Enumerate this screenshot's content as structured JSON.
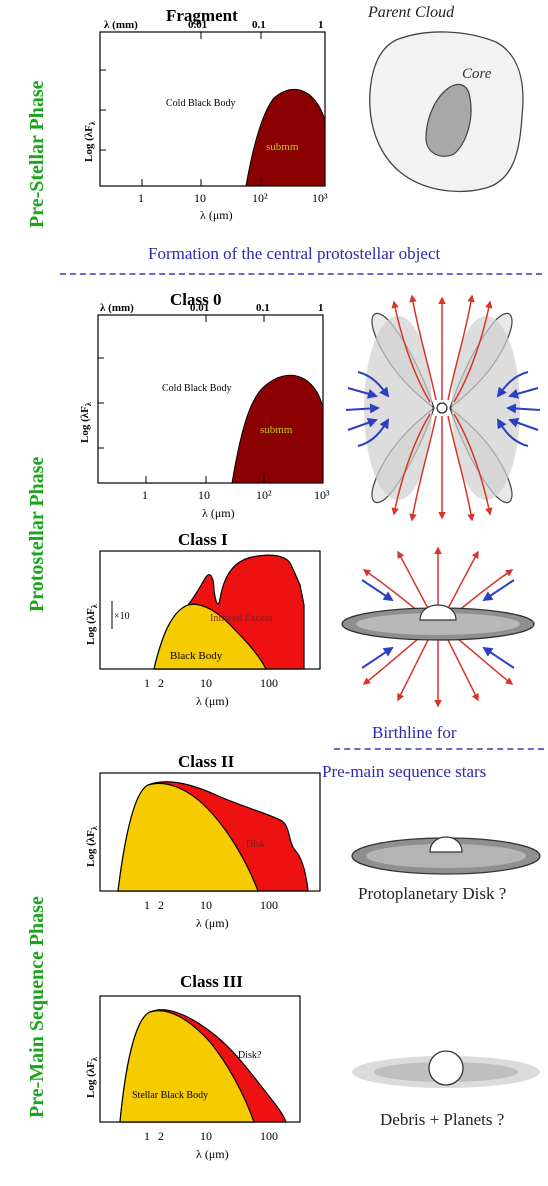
{
  "phases": {
    "pre_stellar": "Pre-Stellar Phase",
    "protostellar": "Protostellar Phase",
    "pre_main_sequence": "Pre-Main Sequence Phase"
  },
  "transitions": {
    "formation": "Formation of the central protostellar object",
    "birthline_1": "Birthline for",
    "birthline_2": "Pre-main sequence stars"
  },
  "fragment": {
    "title": "Fragment",
    "top_axis": [
      "λ (mm)",
      "0.01",
      "0.1",
      "1"
    ],
    "ylabel": "Log (λF",
    "ylabel_sub": "λ",
    "xticks": [
      "1",
      "10",
      "10²",
      "10³"
    ],
    "xlabel": "λ (μm)",
    "label_bb": "Cold Black Body",
    "label_region": "submm"
  },
  "class0": {
    "title": "Class 0",
    "top_axis": [
      "λ (mm)",
      "0.01",
      "0.1",
      "1"
    ],
    "ylabel": "Log (λF",
    "ylabel_sub": "λ",
    "xticks": [
      "1",
      "10",
      "10²",
      "10³"
    ],
    "xlabel": "λ (μm)",
    "label_bb": "Cold Black Body",
    "label_region": "submm"
  },
  "class1": {
    "title": "Class I",
    "ylabel": "Log (λF",
    "ylabel_sub": "λ",
    "factor": "×10",
    "xticks": [
      "1",
      "2",
      "10",
      "100"
    ],
    "xlabel": "λ (μm)",
    "label_excess": "Infrared Excess",
    "label_bb": "Black Body"
  },
  "class2": {
    "title": "Class II",
    "ylabel": "Log (λF",
    "ylabel_sub": "λ",
    "xticks": [
      "1",
      "2",
      "10",
      "100"
    ],
    "xlabel": "λ (μm)",
    "label_disk": "Disk"
  },
  "class3": {
    "title": "Class III",
    "ylabel": "Log (λF",
    "ylabel_sub": "λ",
    "xticks": [
      "1",
      "2",
      "10",
      "100"
    ],
    "xlabel": "λ (μm)",
    "label_disk": "Disk?",
    "label_bb": "Stellar Black Body"
  },
  "cloud": {
    "title": "Parent Cloud",
    "core": "Core"
  },
  "captions": {
    "protoplanetary": "Protoplanetary Disk ?",
    "debris": "Debris + Planets ?"
  },
  "colors": {
    "phase_green": "#1aa51a",
    "transition_blue": "#2a2ab0",
    "submm_fill": "#8b0000",
    "excess_red": "#ee1111",
    "blackbody_yellow": "#f6cc00",
    "outflow_red": "#d8342a",
    "infall_blue": "#2b3fc0"
  }
}
